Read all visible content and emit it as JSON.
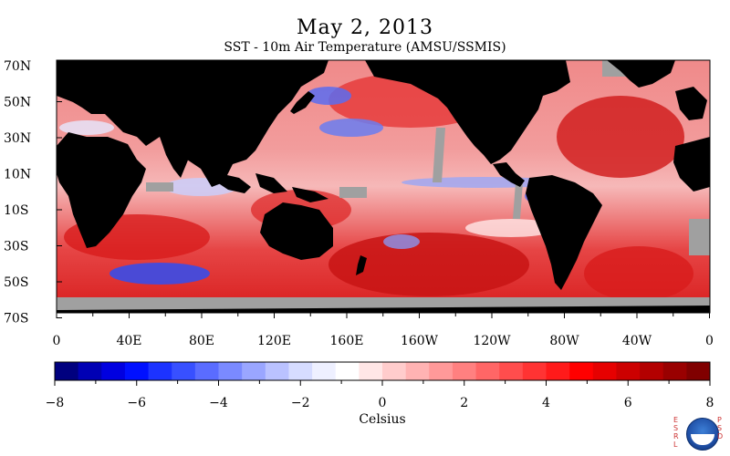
{
  "header": {
    "title": "May 2, 2013",
    "subtitle": "SST - 10m Air Temperature (AMSU/SSMIS)"
  },
  "map": {
    "lat_labels": [
      "70N",
      "50N",
      "30N",
      "10N",
      "10S",
      "30S",
      "50S",
      "70S"
    ],
    "lon_labels": [
      "0",
      "40E",
      "80E",
      "120E",
      "160E",
      "160W",
      "120W",
      "80W",
      "40W",
      "0"
    ],
    "colors": {
      "land": "#000000",
      "missing": "#a0a0a0",
      "warm": "#e11a1a",
      "warm_light": "#f3a3a3",
      "cool": "#5a6cf0",
      "neutral": "#ffffff"
    }
  },
  "colorbar": {
    "tick_labels": [
      "−8",
      "−6",
      "−4",
      "−2",
      "0",
      "2",
      "4",
      "6",
      "8"
    ],
    "unit_label": "Celsius",
    "colors": [
      "#00007f",
      "#0000b4",
      "#0000e0",
      "#0010ff",
      "#1c33ff",
      "#3850ff",
      "#5a6cff",
      "#7a8aff",
      "#9aa6ff",
      "#bac2ff",
      "#d6dcff",
      "#eef0ff",
      "#ffffff",
      "#ffe6e6",
      "#ffcccc",
      "#ffb3b3",
      "#ff9999",
      "#ff8080",
      "#ff6666",
      "#ff4d4d",
      "#ff3333",
      "#ff1a1a",
      "#ff0000",
      "#e60000",
      "#cc0000",
      "#b30000",
      "#990000",
      "#800000"
    ]
  },
  "logo": {
    "left_letters": "ESRL",
    "right_letters": "PSD"
  }
}
